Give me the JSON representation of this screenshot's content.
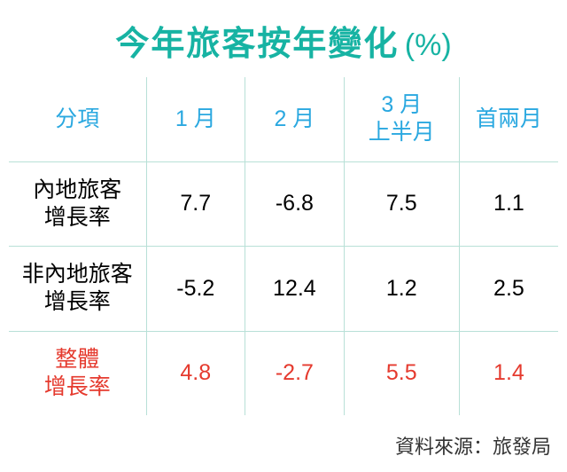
{
  "title": {
    "main": "今年旅客按年變化",
    "unit": "(%)",
    "main_color": "#17b3a3",
    "unit_color": "#17b3a3"
  },
  "table": {
    "type": "table",
    "header_color": "#2aa8e0",
    "grid_color": "#b8e0d7",
    "highlight_color": "#e53a2e",
    "text_color": "#000000",
    "background_color": "#ffffff",
    "font_size_header": 25,
    "font_size_cell": 25,
    "col_widths_pct": [
      25,
      18,
      18,
      21,
      18
    ],
    "columns": [
      "分項",
      "1 月",
      "2 月",
      "3 月\n上半月",
      "首兩月"
    ],
    "rows": [
      {
        "label": "內地旅客\n增長率",
        "values": [
          "7.7",
          "-6.8",
          "7.5",
          "1.1"
        ],
        "highlight": false
      },
      {
        "label": "非內地旅客\n增長率",
        "values": [
          "-5.2",
          "12.4",
          "1.2",
          "2.5"
        ],
        "highlight": false
      },
      {
        "label": "整體\n增長率",
        "values": [
          "4.8",
          "-2.7",
          "5.5",
          "1.4"
        ],
        "highlight": true
      }
    ]
  },
  "source": {
    "prefix": "資料來源：",
    "name": "旅發局"
  }
}
